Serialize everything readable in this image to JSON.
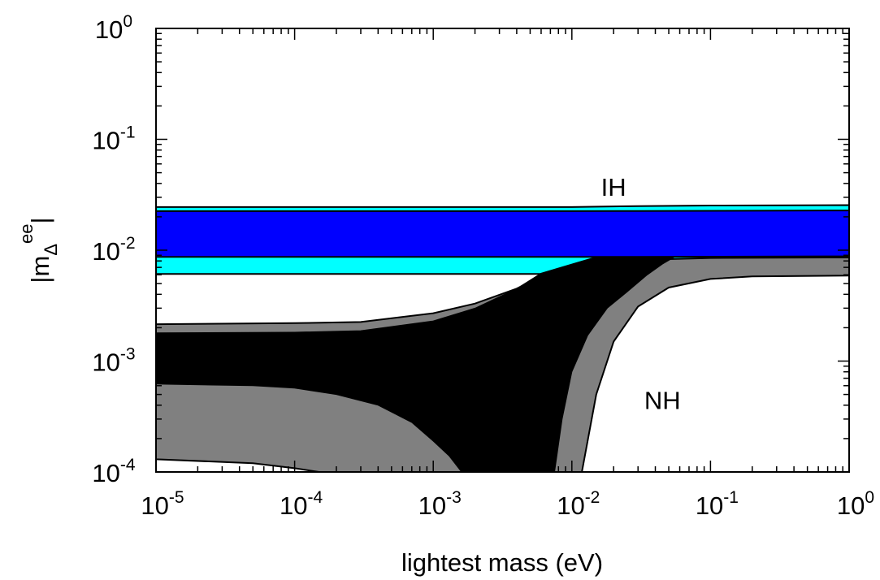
{
  "chart_data": {
    "type": "area",
    "xlabel": "lightest mass (eV)",
    "ylabel": {
      "base": "|m",
      "sub": "Δ",
      "sup": "ee",
      "end": "|"
    },
    "xscale": "log",
    "yscale": "log",
    "xlim": [
      1e-05,
      1
    ],
    "ylim": [
      0.0001,
      1
    ],
    "x_ticks": [
      {
        "value": 1e-05,
        "base": "10",
        "exp": "-5"
      },
      {
        "value": 0.0001,
        "base": "10",
        "exp": "-4"
      },
      {
        "value": 0.001,
        "base": "10",
        "exp": "-3"
      },
      {
        "value": 0.01,
        "base": "10",
        "exp": "-2"
      },
      {
        "value": 0.1,
        "base": "10",
        "exp": "-1"
      },
      {
        "value": 1,
        "base": "10",
        "exp": "0"
      }
    ],
    "y_ticks": [
      {
        "value": 0.0001,
        "base": "10",
        "exp": "-4"
      },
      {
        "value": 0.001,
        "base": "10",
        "exp": "-3"
      },
      {
        "value": 0.01,
        "base": "10",
        "exp": "-2"
      },
      {
        "value": 0.1,
        "base": "10",
        "exp": "-1"
      },
      {
        "value": 1,
        "base": "10",
        "exp": "0"
      }
    ],
    "annotations": [
      {
        "text": "IH",
        "x": 0.02,
        "y": 0.031
      },
      {
        "text": "NH",
        "x": 0.045,
        "y": 0.00037
      }
    ],
    "colors": {
      "ih_outer": "#00ffff",
      "ih_inner": "#0000ff",
      "nh_outer": "#808080",
      "nh_inner": "#000000"
    },
    "regions": [
      {
        "id": "ih-outer",
        "upper": [
          [
            1e-05,
            0.0245
          ],
          [
            0.01,
            0.0245
          ],
          [
            0.03,
            0.025
          ],
          [
            0.1,
            0.0253
          ],
          [
            1,
            0.0255
          ]
        ],
        "lower": [
          [
            1e-05,
            0.0061
          ],
          [
            0.01,
            0.0061
          ],
          [
            0.03,
            0.0061
          ],
          [
            0.1,
            0.0062
          ],
          [
            1,
            0.0062
          ]
        ]
      },
      {
        "id": "ih-inner",
        "upper": [
          [
            1e-05,
            0.0225
          ],
          [
            0.01,
            0.0225
          ],
          [
            0.03,
            0.0226
          ],
          [
            1,
            0.0228
          ]
        ],
        "lower": [
          [
            1e-05,
            0.0087
          ],
          [
            0.01,
            0.0087
          ],
          [
            0.03,
            0.0087
          ],
          [
            1,
            0.0088
          ]
        ]
      },
      {
        "id": "nh-outer",
        "upper": [
          [
            1e-05,
            0.00215
          ],
          [
            0.0001,
            0.0022
          ],
          [
            0.0003,
            0.00225
          ],
          [
            0.001,
            0.0027
          ],
          [
            0.002,
            0.0033
          ],
          [
            0.004,
            0.0045
          ],
          [
            0.006,
            0.0058
          ],
          [
            0.01,
            0.0068
          ],
          [
            0.02,
            0.0078
          ],
          [
            0.05,
            0.0083
          ],
          [
            0.1,
            0.0085
          ],
          [
            1,
            0.0086
          ]
        ],
        "lower": [
          [
            1e-05,
            0.00013
          ],
          [
            5e-05,
            0.00012
          ],
          [
            0.0001,
            0.000108
          ],
          [
            0.00015,
            0.0001
          ]
        ],
        "lower2": [
          [
            0.0118,
            0.0001
          ],
          [
            0.015,
            0.0005
          ],
          [
            0.02,
            0.0015
          ],
          [
            0.03,
            0.0031
          ],
          [
            0.05,
            0.0046
          ],
          [
            0.1,
            0.0055
          ],
          [
            0.2,
            0.0058
          ],
          [
            1,
            0.0059
          ]
        ]
      },
      {
        "id": "nh-inner",
        "upper": [
          [
            1e-05,
            0.0018
          ],
          [
            0.0001,
            0.00182
          ],
          [
            0.0003,
            0.00188
          ],
          [
            0.001,
            0.0023
          ],
          [
            0.002,
            0.003
          ],
          [
            0.004,
            0.0045
          ],
          [
            0.006,
            0.0062
          ],
          [
            0.01,
            0.0075
          ],
          [
            0.015,
            0.0087
          ],
          [
            0.02,
            0.0088
          ]
        ],
        "lower": [
          [
            1e-05,
            0.00062
          ],
          [
            5e-05,
            0.0006
          ],
          [
            0.0001,
            0.00057
          ],
          [
            0.0002,
            0.0005
          ],
          [
            0.0004,
            0.0004
          ],
          [
            0.0007,
            0.00028
          ],
          [
            0.001,
            0.00019
          ],
          [
            0.0013,
            0.00014
          ],
          [
            0.0016,
            0.0001
          ]
        ],
        "lower2": [
          [
            0.0075,
            0.0001
          ],
          [
            0.0085,
            0.0003
          ],
          [
            0.01,
            0.0008
          ],
          [
            0.013,
            0.0017
          ],
          [
            0.018,
            0.003
          ],
          [
            0.025,
            0.0042
          ],
          [
            0.035,
            0.006
          ],
          [
            0.045,
            0.0075
          ],
          [
            0.055,
            0.0087
          ]
        ]
      }
    ]
  }
}
